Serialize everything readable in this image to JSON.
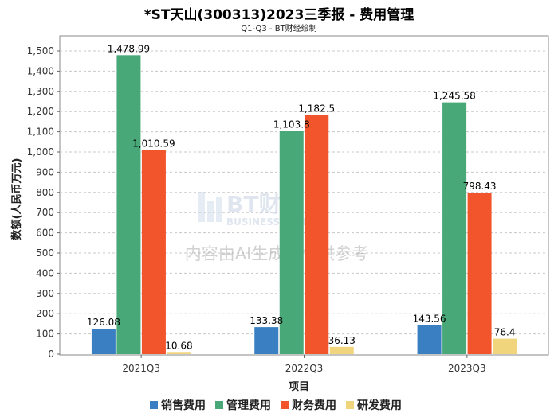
{
  "title": "*ST天山(300313)2023三季报 - 费用管理",
  "subtitle": "Q1-Q3 - BT财经绘制",
  "watermark": {
    "logo_text": "BT财经",
    "logo_subtext": "BUSINESS TIMES",
    "notice": "内容由AI生成，仅供参考"
  },
  "colors": {
    "销售费用": "#3a7fc1",
    "管理费用": "#48a878",
    "财务费用": "#f2542b",
    "研发费用": "#f0d57c"
  },
  "chart_data": {
    "type": "bar",
    "title": "*ST天山(300313)2023三季报 - 费用管理",
    "subtitle": "Q1-Q3 - BT财经绘制",
    "xlabel": "项目",
    "ylabel": "数额(人民币万元)",
    "categories": [
      "2021Q3",
      "2022Q3",
      "2023Q3"
    ],
    "series": [
      {
        "name": "销售费用",
        "values": [
          126.08,
          133.38,
          143.56
        ],
        "labels": [
          "126.08",
          "133.38",
          "143.56"
        ]
      },
      {
        "name": "管理费用",
        "values": [
          1478.99,
          1103.8,
          1245.58
        ],
        "labels": [
          "1,478.99",
          "1,103.8",
          "1,245.58"
        ]
      },
      {
        "name": "财务费用",
        "values": [
          1010.59,
          1182.5,
          798.43
        ],
        "labels": [
          "1,010.59",
          "1,182.5",
          "798.43"
        ]
      },
      {
        "name": "研发费用",
        "values": [
          10.68,
          36.13,
          76.4
        ],
        "labels": [
          "10.68",
          "36.13",
          "76.4"
        ]
      }
    ],
    "ylim": [
      0,
      1500
    ],
    "yticks": [
      0,
      100,
      200,
      300,
      400,
      500,
      600,
      700,
      800,
      900,
      1000,
      1100,
      1200,
      1300,
      1400,
      1500
    ],
    "ytick_labels": [
      "0",
      "100",
      "200",
      "300",
      "400",
      "500",
      "600",
      "700",
      "800",
      "900",
      "1,000",
      "1,100",
      "1,200",
      "1,300",
      "1,400",
      "1,500"
    ],
    "grid": true,
    "legend": "bottom"
  }
}
